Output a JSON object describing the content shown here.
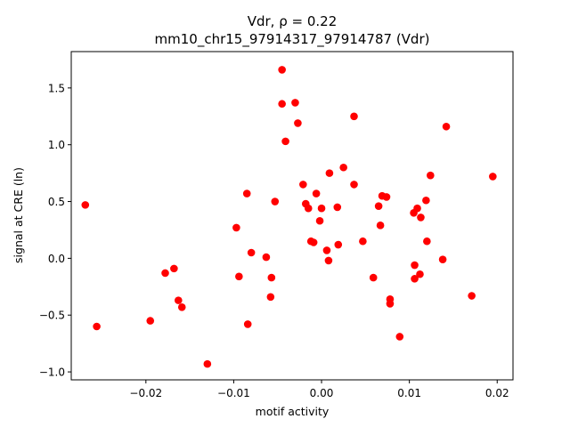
{
  "chart_data": {
    "type": "scatter",
    "title_line1": "Vdr, ρ = 0.22",
    "title_line2": "mm10_chr15_97914317_97914787 (Vdr)",
    "xlabel": "motif activity",
    "ylabel": "signal at CRE (ln)",
    "xlim": [
      -0.0285,
      0.0218
    ],
    "ylim": [
      -1.07,
      1.82
    ],
    "x_ticks": [
      -0.02,
      -0.01,
      0.0,
      0.01,
      0.02
    ],
    "x_tick_labels": [
      "−0.02",
      "−0.01",
      "0.00",
      "0.01",
      "0.02"
    ],
    "y_ticks": [
      -1.0,
      -0.5,
      0.0,
      0.5,
      1.0,
      1.5
    ],
    "y_tick_labels": [
      "−1.0",
      "−0.5",
      "0.0",
      "0.5",
      "1.0",
      "1.5"
    ],
    "grid": false,
    "marker_color": "#ff0000",
    "points": [
      {
        "x": -0.0269,
        "y": 0.47
      },
      {
        "x": -0.0256,
        "y": -0.6
      },
      {
        "x": -0.0195,
        "y": -0.55
      },
      {
        "x": -0.0178,
        "y": -0.13
      },
      {
        "x": -0.0168,
        "y": -0.09
      },
      {
        "x": -0.0163,
        "y": -0.37
      },
      {
        "x": -0.0159,
        "y": -0.43
      },
      {
        "x": -0.013,
        "y": -0.93
      },
      {
        "x": -0.0097,
        "y": 0.27
      },
      {
        "x": -0.0094,
        "y": -0.16
      },
      {
        "x": -0.0085,
        "y": 0.57
      },
      {
        "x": -0.0084,
        "y": -0.58
      },
      {
        "x": -0.008,
        "y": 0.05
      },
      {
        "x": -0.0063,
        "y": 0.01
      },
      {
        "x": -0.0057,
        "y": -0.17
      },
      {
        "x": -0.0058,
        "y": -0.34
      },
      {
        "x": -0.0053,
        "y": 0.5
      },
      {
        "x": -0.0045,
        "y": 1.66
      },
      {
        "x": -0.0045,
        "y": 1.36
      },
      {
        "x": -0.0041,
        "y": 1.03
      },
      {
        "x": -0.003,
        "y": 1.37
      },
      {
        "x": -0.0027,
        "y": 1.19
      },
      {
        "x": -0.0021,
        "y": 0.65
      },
      {
        "x": -0.0018,
        "y": 0.48
      },
      {
        "x": -0.0015,
        "y": 0.44
      },
      {
        "x": -0.0012,
        "y": 0.15
      },
      {
        "x": -0.0009,
        "y": 0.14
      },
      {
        "x": -0.0006,
        "y": 0.57
      },
      {
        "x": -0.0002,
        "y": 0.33
      },
      {
        "x": 0.0,
        "y": 0.44
      },
      {
        "x": 0.0006,
        "y": 0.07
      },
      {
        "x": 0.0008,
        "y": -0.02
      },
      {
        "x": 0.0009,
        "y": 0.75
      },
      {
        "x": 0.0018,
        "y": 0.45
      },
      {
        "x": 0.0019,
        "y": 0.12
      },
      {
        "x": 0.0025,
        "y": 0.8
      },
      {
        "x": 0.0037,
        "y": 1.25
      },
      {
        "x": 0.0037,
        "y": 0.65
      },
      {
        "x": 0.0047,
        "y": 0.15
      },
      {
        "x": 0.0059,
        "y": -0.17
      },
      {
        "x": 0.0065,
        "y": 0.46
      },
      {
        "x": 0.0067,
        "y": 0.29
      },
      {
        "x": 0.0069,
        "y": 0.55
      },
      {
        "x": 0.0074,
        "y": 0.54
      },
      {
        "x": 0.0078,
        "y": -0.36
      },
      {
        "x": 0.0078,
        "y": -0.4
      },
      {
        "x": 0.0089,
        "y": -0.69
      },
      {
        "x": 0.0105,
        "y": 0.4
      },
      {
        "x": 0.0106,
        "y": -0.06
      },
      {
        "x": 0.0106,
        "y": -0.18
      },
      {
        "x": 0.0109,
        "y": 0.44
      },
      {
        "x": 0.0112,
        "y": -0.14
      },
      {
        "x": 0.0113,
        "y": 0.36
      },
      {
        "x": 0.0119,
        "y": 0.51
      },
      {
        "x": 0.012,
        "y": 0.15
      },
      {
        "x": 0.0124,
        "y": 0.73
      },
      {
        "x": 0.0138,
        "y": -0.01
      },
      {
        "x": 0.0142,
        "y": 1.16
      },
      {
        "x": 0.0171,
        "y": -0.33
      },
      {
        "x": 0.0195,
        "y": 0.72
      }
    ]
  }
}
